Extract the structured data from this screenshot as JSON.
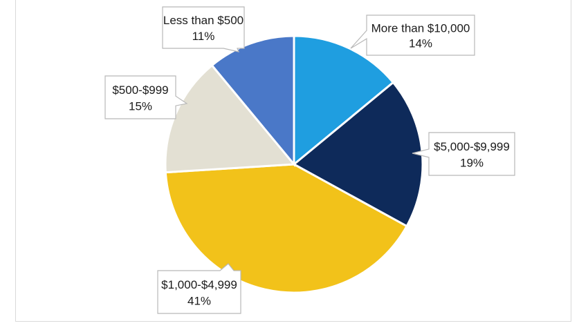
{
  "chart_data": {
    "type": "pie",
    "title": "",
    "slices": [
      {
        "label": "More than $10,000",
        "value": 14,
        "value_label": "14%",
        "color": "#1f9ee0"
      },
      {
        "label": "$5,000-$9,999",
        "value": 19,
        "value_label": "19%",
        "color": "#0e2a5a"
      },
      {
        "label": "$1,000-$4,999",
        "value": 41,
        "value_label": "41%",
        "color": "#f2c21a"
      },
      {
        "label": "$500-$999",
        "value": 15,
        "value_label": "15%",
        "color": "#e3e0d3"
      },
      {
        "label": "Less than $500",
        "value": 11,
        "value_label": "11%",
        "color": "#4a78c8"
      }
    ],
    "start_angle_deg": 0,
    "direction": "clockwise",
    "legend": "none",
    "data_labels": "callouts"
  }
}
